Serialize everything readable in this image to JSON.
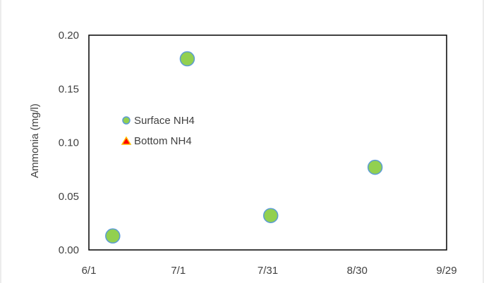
{
  "chart_data": {
    "type": "scatter",
    "title": "",
    "xlabel": "",
    "ylabel": "Ammonia  (mg/l)",
    "x_ticks": [
      "6/1",
      "7/1",
      "7/31",
      "8/30",
      "9/29"
    ],
    "x_range": [
      "6/1",
      "9/29"
    ],
    "ylim": [
      0,
      0.2
    ],
    "y_ticks": [
      "0.00",
      "0.05",
      "0.10",
      "0.15",
      "0.20"
    ],
    "grid": false,
    "legend_position": "left",
    "series": [
      {
        "name": "Surface NH4",
        "marker": "circle",
        "fill": "#92d050",
        "stroke": "#5b9bd5",
        "x": [
          "6/9",
          "7/4",
          "8/1",
          "9/5"
        ],
        "y": [
          0.013,
          0.178,
          0.032,
          0.077
        ]
      },
      {
        "name": "Bottom NH4",
        "marker": "triangle",
        "fill": "#ff0000",
        "stroke": "#ffc000",
        "x": [],
        "y": []
      }
    ]
  }
}
